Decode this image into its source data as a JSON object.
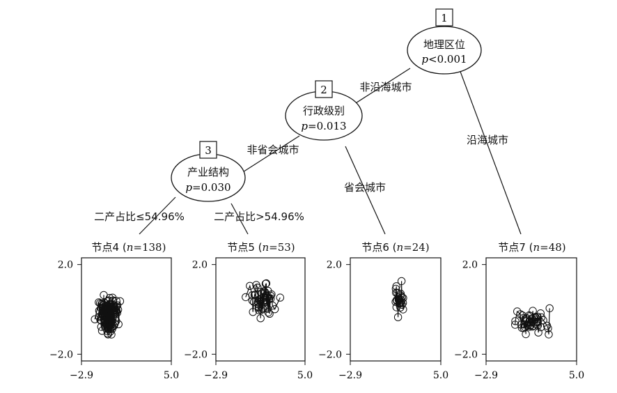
{
  "tree": {
    "nodes": [
      {
        "id": "1",
        "title": "地理区位",
        "p_symbol": "p",
        "p_op": "<",
        "p_value": "0.001"
      },
      {
        "id": "2",
        "title": "行政级别",
        "p_symbol": "p",
        "p_op": "=",
        "p_value": "0.013"
      },
      {
        "id": "3",
        "title": "产业结构",
        "p_symbol": "p",
        "p_op": "=",
        "p_value": "0.030"
      }
    ],
    "edges": [
      {
        "from": "1",
        "to": "2",
        "label": "非沿海城市"
      },
      {
        "from": "1",
        "to": "7",
        "label": "沿海城市"
      },
      {
        "from": "2",
        "to": "3",
        "label": "非省会城市"
      },
      {
        "from": "2",
        "to": "6",
        "label": "省会城市"
      },
      {
        "from": "3",
        "to": "4",
        "label": "二产占比≤54.96%"
      },
      {
        "from": "3",
        "to": "5",
        "label": "二产占比>54.96%"
      }
    ],
    "leaves": [
      {
        "id": "4",
        "prefix": "节点4 (",
        "n_symbol": "n",
        "n_text": "=138)"
      },
      {
        "id": "5",
        "prefix": "节点5 (",
        "n_symbol": "n",
        "n_text": "=53)"
      },
      {
        "id": "6",
        "prefix": "节点6 (",
        "n_symbol": "n",
        "n_text": "=24)"
      },
      {
        "id": "7",
        "prefix": "节点7 (",
        "n_symbol": "n",
        "n_text": "=48)"
      }
    ]
  },
  "chart_data": [
    {
      "type": "scatter",
      "title": "节点4 (n=138)",
      "xlim": [
        -2.9,
        5.0
      ],
      "ylim": [
        -2.3,
        2.3
      ],
      "x_ticks": [
        "-2.9",
        "5.0"
      ],
      "y_ticks": [
        "2.0",
        "-2.0"
      ],
      "n": 138
    },
    {
      "type": "scatter",
      "title": "节点5 (n=53)",
      "xlim": [
        -2.9,
        5.0
      ],
      "ylim": [
        -2.3,
        2.3
      ],
      "x_ticks": [
        "-2.9",
        "5.0"
      ],
      "y_ticks": [
        "2.0",
        "-2.0"
      ],
      "n": 53
    },
    {
      "type": "scatter",
      "title": "节点6 (n=24)",
      "xlim": [
        -2.9,
        5.0
      ],
      "ylim": [
        -2.3,
        2.3
      ],
      "x_ticks": [
        "-2.9",
        "5.0"
      ],
      "y_ticks": [
        "2.0",
        "-2.0"
      ],
      "n": 24
    },
    {
      "type": "scatter",
      "title": "节点7 (n=48)",
      "xlim": [
        -2.9,
        5.0
      ],
      "ylim": [
        -2.3,
        2.3
      ],
      "x_ticks": [
        "-2.9",
        "5.0"
      ],
      "y_ticks": [
        "2.0",
        "-2.0"
      ],
      "n": 48
    }
  ],
  "axis": {
    "x_min_label": "−2.9",
    "x_max_label": "5.0",
    "y_top_label": "2.0",
    "y_bottom_label": "−2.0"
  }
}
